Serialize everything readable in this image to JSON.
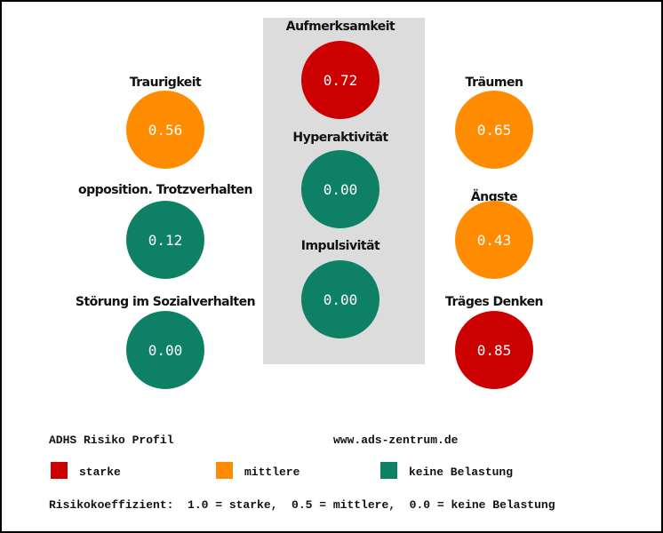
{
  "colors": {
    "starke": "#cc0000",
    "mittlere": "#ff8c00",
    "keine": "#0e8065"
  },
  "items": [
    {
      "label": "Traurigkeit",
      "value": "0.56",
      "level": "mittlere"
    },
    {
      "label": "opposition. Trotzverhalten",
      "value": "0.12",
      "level": "keine"
    },
    {
      "label": "Störung im Sozialverhalten",
      "value": "0.00",
      "level": "keine"
    },
    {
      "label": "Aufmerksamkeit",
      "value": "0.72",
      "level": "starke"
    },
    {
      "label": "Hyperaktivität",
      "value": "0.00",
      "level": "keine"
    },
    {
      "label": "Impulsivität",
      "value": "0.00",
      "level": "keine"
    },
    {
      "label": "Träumen",
      "value": "0.65",
      "level": "mittlere"
    },
    {
      "label": "Ängste",
      "value": "0.43",
      "level": "mittlere"
    },
    {
      "label": "Träges Denken",
      "value": "0.85",
      "level": "starke"
    }
  ],
  "footer": {
    "title": "ADHS Risiko Profil",
    "url": "www.ads-zentrum.de",
    "legend": [
      "starke",
      "mittlere",
      "keine Belastung"
    ],
    "coefficient": "Risikokoeffizient:  1.0 = starke,  0.5 = mittlere,  0.0 = keine Belastung"
  }
}
